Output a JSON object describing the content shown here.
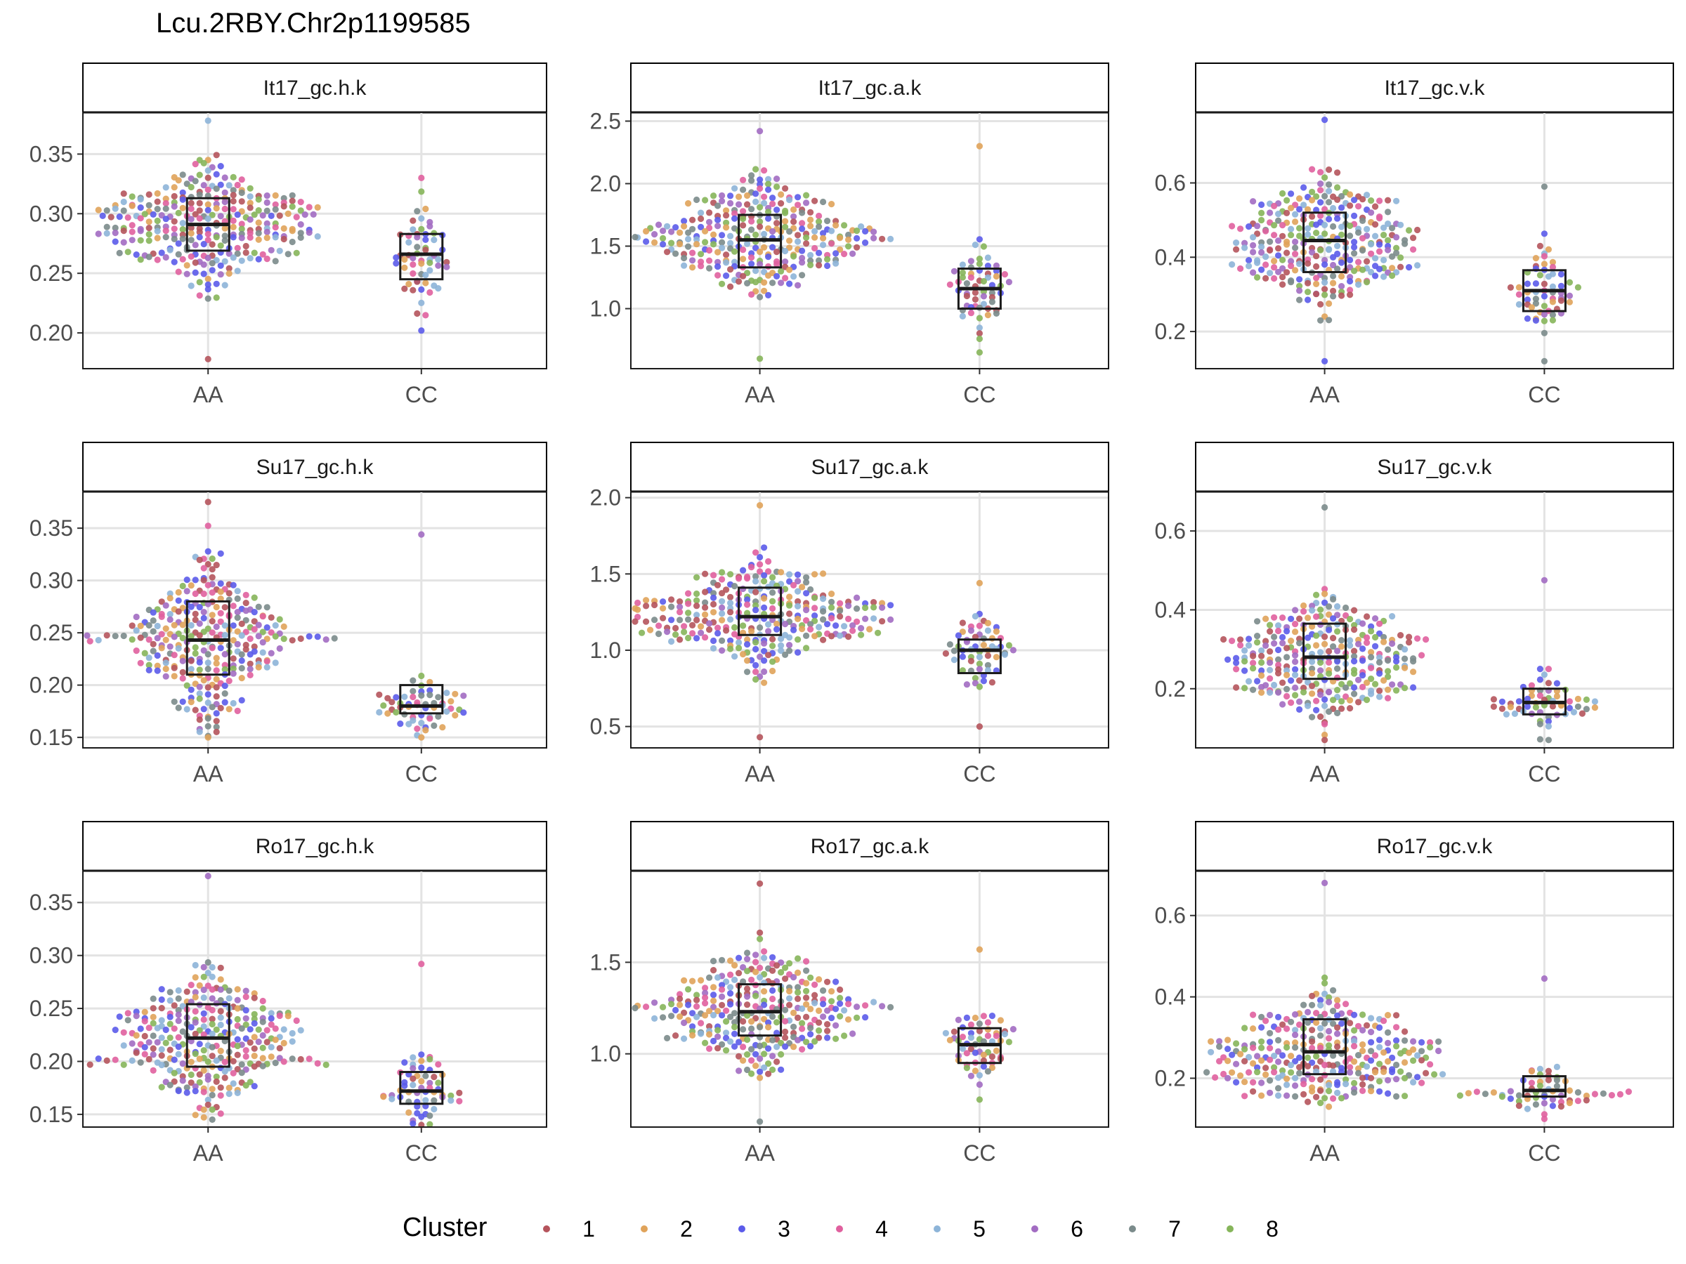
{
  "figure": {
    "title": "Lcu.2RBY.Chr2p1199585"
  },
  "legend": {
    "title": "Cluster",
    "items": [
      {
        "label": "1",
        "color": "#B5545C"
      },
      {
        "label": "2",
        "color": "#E0A35A"
      },
      {
        "label": "3",
        "color": "#5B5BEA"
      },
      {
        "label": "4",
        "color": "#E0609E"
      },
      {
        "label": "5",
        "color": "#8DB4D8"
      },
      {
        "label": "6",
        "color": "#A26CC2"
      },
      {
        "label": "7",
        "color": "#7B8B8B"
      },
      {
        "label": "8",
        "color": "#86B55A"
      }
    ]
  },
  "chart_data": [
    {
      "type": "box+beeswarm",
      "panel": "It17_gc.h.k",
      "categories": [
        "AA",
        "CC"
      ],
      "ylim": [
        0.17,
        0.385
      ],
      "yticks": [
        "0.20",
        "0.25",
        "0.30",
        "0.35"
      ],
      "boxes": [
        {
          "category": "AA",
          "q1": 0.269,
          "median": 0.291,
          "q3": 0.313
        },
        {
          "category": "CC",
          "q1": 0.245,
          "median": 0.266,
          "q3": 0.283
        }
      ],
      "points": [
        {
          "category": "AA",
          "min": 0.178,
          "max": 0.378,
          "n": 300
        },
        {
          "category": "CC",
          "min": 0.202,
          "max": 0.33,
          "n": 60
        }
      ]
    },
    {
      "type": "box+beeswarm",
      "panel": "It17_gc.a.k",
      "categories": [
        "AA",
        "CC"
      ],
      "ylim": [
        0.52,
        2.57
      ],
      "yticks": [
        "1.0",
        "1.5",
        "2.0",
        "2.5"
      ],
      "boxes": [
        {
          "category": "AA",
          "q1": 1.33,
          "median": 1.55,
          "q3": 1.75
        },
        {
          "category": "CC",
          "q1": 1.0,
          "median": 1.16,
          "q3": 1.32
        }
      ],
      "points": [
        {
          "category": "AA",
          "min": 0.6,
          "max": 2.42,
          "n": 300
        },
        {
          "category": "CC",
          "min": 0.65,
          "max": 2.3,
          "n": 60
        }
      ]
    },
    {
      "type": "box+beeswarm",
      "panel": "It17_gc.v.k",
      "categories": [
        "AA",
        "CC"
      ],
      "ylim": [
        0.1,
        0.79
      ],
      "yticks": [
        "0.2",
        "0.4",
        "0.6"
      ],
      "boxes": [
        {
          "category": "AA",
          "q1": 0.36,
          "median": 0.445,
          "q3": 0.52
        },
        {
          "category": "CC",
          "q1": 0.255,
          "median": 0.31,
          "q3": 0.365
        }
      ],
      "points": [
        {
          "category": "AA",
          "min": 0.12,
          "max": 0.77,
          "n": 300
        },
        {
          "category": "CC",
          "min": 0.12,
          "max": 0.59,
          "n": 60
        }
      ]
    },
    {
      "type": "box+beeswarm",
      "panel": "Su17_gc.h.k",
      "categories": [
        "AA",
        "CC"
      ],
      "ylim": [
        0.14,
        0.385
      ],
      "yticks": [
        "0.15",
        "0.20",
        "0.25",
        "0.30",
        "0.35"
      ],
      "boxes": [
        {
          "category": "AA",
          "q1": 0.21,
          "median": 0.243,
          "q3": 0.28
        },
        {
          "category": "CC",
          "q1": 0.173,
          "median": 0.18,
          "q3": 0.2
        }
      ],
      "points": [
        {
          "category": "AA",
          "min": 0.15,
          "max": 0.375,
          "n": 300
        },
        {
          "category": "CC",
          "min": 0.15,
          "max": 0.344,
          "n": 60
        }
      ]
    },
    {
      "type": "box+beeswarm",
      "panel": "Su17_gc.a.k",
      "categories": [
        "AA",
        "CC"
      ],
      "ylim": [
        0.36,
        2.04
      ],
      "yticks": [
        "0.5",
        "1.0",
        "1.5",
        "2.0"
      ],
      "boxes": [
        {
          "category": "AA",
          "q1": 1.1,
          "median": 1.22,
          "q3": 1.41
        },
        {
          "category": "CC",
          "q1": 0.85,
          "median": 1.0,
          "q3": 1.07
        }
      ],
      "points": [
        {
          "category": "AA",
          "min": 0.43,
          "max": 1.95,
          "n": 300
        },
        {
          "category": "CC",
          "min": 0.5,
          "max": 1.44,
          "n": 60
        }
      ]
    },
    {
      "type": "box+beeswarm",
      "panel": "Su17_gc.v.k",
      "categories": [
        "AA",
        "CC"
      ],
      "ylim": [
        0.05,
        0.7
      ],
      "yticks": [
        "0.2",
        "0.4",
        "0.6"
      ],
      "boxes": [
        {
          "category": "AA",
          "q1": 0.225,
          "median": 0.28,
          "q3": 0.365
        },
        {
          "category": "CC",
          "q1": 0.135,
          "median": 0.165,
          "q3": 0.2
        }
      ],
      "points": [
        {
          "category": "AA",
          "min": 0.07,
          "max": 0.66,
          "n": 300
        },
        {
          "category": "CC",
          "min": 0.07,
          "max": 0.475,
          "n": 60
        }
      ]
    },
    {
      "type": "box+beeswarm",
      "panel": "Ro17_gc.h.k",
      "categories": [
        "AA",
        "CC"
      ],
      "ylim": [
        0.138,
        0.38
      ],
      "yticks": [
        "0.15",
        "0.20",
        "0.25",
        "0.30",
        "0.35"
      ],
      "boxes": [
        {
          "category": "AA",
          "q1": 0.195,
          "median": 0.222,
          "q3": 0.254
        },
        {
          "category": "CC",
          "q1": 0.16,
          "median": 0.172,
          "q3": 0.19
        }
      ],
      "points": [
        {
          "category": "AA",
          "min": 0.145,
          "max": 0.375,
          "n": 300
        },
        {
          "category": "CC",
          "min": 0.14,
          "max": 0.292,
          "n": 60
        }
      ]
    },
    {
      "type": "box+beeswarm",
      "panel": "Ro17_gc.a.k",
      "categories": [
        "AA",
        "CC"
      ],
      "ylim": [
        0.6,
        2.0
      ],
      "yticks": [
        "1.0",
        "1.5"
      ],
      "boxes": [
        {
          "category": "AA",
          "q1": 1.1,
          "median": 1.23,
          "q3": 1.38
        },
        {
          "category": "CC",
          "q1": 0.95,
          "median": 1.05,
          "q3": 1.14
        }
      ],
      "points": [
        {
          "category": "AA",
          "min": 0.63,
          "max": 1.93,
          "n": 300
        },
        {
          "category": "CC",
          "min": 0.75,
          "max": 1.57,
          "n": 60
        }
      ]
    },
    {
      "type": "box+beeswarm",
      "panel": "Ro17_gc.v.k",
      "categories": [
        "AA",
        "CC"
      ],
      "ylim": [
        0.08,
        0.71
      ],
      "yticks": [
        "0.2",
        "0.4",
        "0.6"
      ],
      "boxes": [
        {
          "category": "AA",
          "q1": 0.21,
          "median": 0.265,
          "q3": 0.345
        },
        {
          "category": "CC",
          "q1": 0.155,
          "median": 0.17,
          "q3": 0.205
        }
      ],
      "points": [
        {
          "category": "AA",
          "min": 0.13,
          "max": 0.68,
          "n": 300
        },
        {
          "category": "CC",
          "min": 0.1,
          "max": 0.445,
          "n": 60
        }
      ]
    }
  ]
}
